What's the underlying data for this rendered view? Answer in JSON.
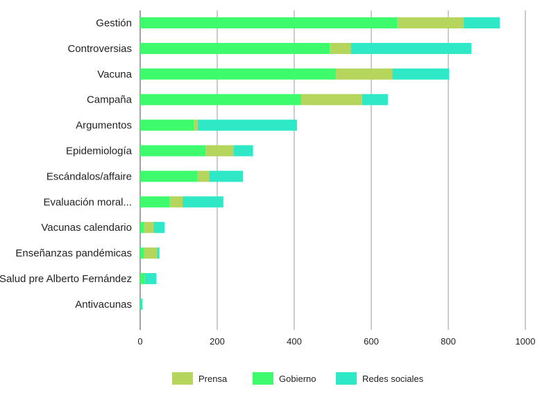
{
  "chart_data": {
    "type": "bar",
    "orientation": "horizontal",
    "stacked": true,
    "categories": [
      "Gestión",
      "Controversias",
      "Vacuna",
      "Campaña",
      "Argumentos",
      "Epidemiología",
      "Escándalos/affaire",
      "Evaluación moral...",
      "Vacunas calendario",
      "Enseñanzas pandémicas",
      "Salud pre Alberto Fernández",
      "Antivacunas"
    ],
    "series": [
      {
        "name": "Gobierno",
        "color": "#3DFB6C",
        "values": [
          668,
          492,
          508,
          418,
          139,
          170,
          149,
          77,
          9,
          9,
          12,
          1
        ]
      },
      {
        "name": "Prensa",
        "color": "#B5D55C",
        "values": [
          172,
          55,
          147,
          158,
          10,
          72,
          30,
          33,
          26,
          35,
          0,
          0
        ]
      },
      {
        "name": "Redes sociales",
        "color": "#2EE8C6",
        "values": [
          94,
          313,
          147,
          67,
          258,
          51,
          88,
          106,
          28,
          6,
          30,
          5
        ]
      }
    ],
    "legend_order": [
      "Prensa",
      "Gobierno",
      "Redes sociales"
    ],
    "x_ticks": [
      "0",
      "200",
      "400",
      "600",
      "800",
      "1000"
    ],
    "xlim": [
      0,
      1000
    ],
    "grid": true,
    "legend_position": "bottom"
  }
}
